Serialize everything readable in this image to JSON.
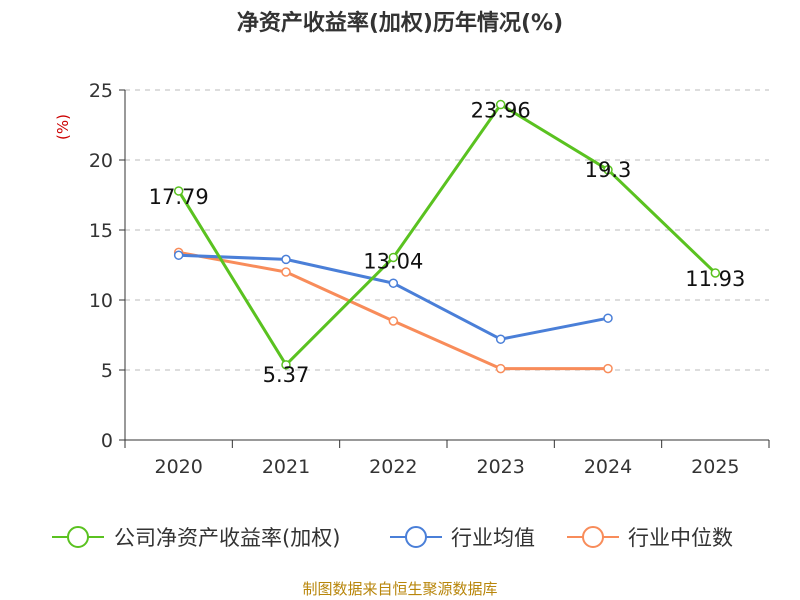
{
  "chart_data": {
    "type": "line",
    "title": "净资产收益率(加权)历年情况(%)",
    "ylabel": "(%)",
    "categories": [
      "2020",
      "2021",
      "2022",
      "2023",
      "2024",
      "2025"
    ],
    "ylim": [
      0,
      25
    ],
    "yticks": [
      "0",
      "5",
      "10",
      "15",
      "20",
      "25"
    ],
    "grid": true,
    "legend_position": "bottom",
    "series": [
      {
        "name": "公司净资产收益率(加权)",
        "color": "#5ac220",
        "values": [
          17.79,
          5.37,
          13.04,
          23.96,
          19.3,
          11.93
        ],
        "labels": [
          "17.79",
          "5.37",
          "13.04",
          "23.96",
          "19.3",
          "11.93"
        ]
      },
      {
        "name": "行业均值",
        "color": "#4a7fd8",
        "values": [
          13.2,
          12.9,
          11.2,
          7.2,
          8.7,
          null
        ]
      },
      {
        "name": "行业中位数",
        "color": "#f88c5a",
        "values": [
          13.4,
          12.0,
          8.5,
          5.1,
          5.1,
          null
        ]
      }
    ],
    "source": "制图数据来自恒生聚源数据库"
  }
}
